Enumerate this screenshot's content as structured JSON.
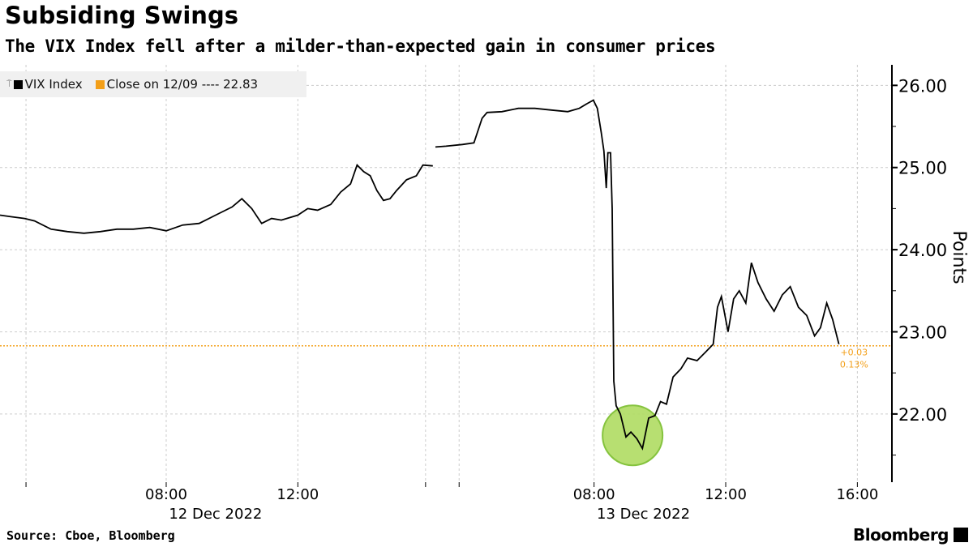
{
  "chart_data": {
    "type": "line",
    "title": "Subsiding Swings",
    "subtitle": "The VIX Index fell after a milder-than-expected gain in consumer prices",
    "ylabel": "Points",
    "ylim": [
      21.17,
      26.25
    ],
    "yticks": [
      22.0,
      23.0,
      24.0,
      25.0,
      26.0
    ],
    "ytick_labels": [
      "22.00",
      "23.00",
      "24.00",
      "25.00",
      "26.00"
    ],
    "xlim": [
      2.95,
      30.05
    ],
    "xticks": [
      8,
      12,
      21,
      25,
      29
    ],
    "xtick_labels": [
      "08:00",
      "12:00",
      "08:00",
      "12:00",
      "16:00"
    ],
    "x_minor_gridlines": [
      3.74,
      15.88,
      16.9
    ],
    "date_labels": [
      {
        "x": 9.5,
        "label": "12 Dec 2022"
      },
      {
        "x": 22.5,
        "label": "13 Dec 2022"
      }
    ],
    "grid": true,
    "legend_position": "top-left",
    "series": [
      {
        "name": "VIX Index",
        "color": "#000000",
        "segments": [
          [
            [
              2.95,
              24.42
            ],
            [
              3.3,
              24.4
            ],
            [
              3.7,
              24.38
            ],
            [
              4.0,
              24.35
            ],
            [
              4.5,
              24.25
            ],
            [
              5.0,
              24.22
            ],
            [
              5.5,
              24.2
            ],
            [
              6.0,
              24.22
            ],
            [
              6.5,
              24.25
            ],
            [
              7.0,
              24.25
            ],
            [
              7.5,
              24.27
            ],
            [
              8.0,
              24.23
            ],
            [
              8.5,
              24.3
            ],
            [
              9.0,
              24.32
            ],
            [
              9.5,
              24.42
            ],
            [
              10.0,
              24.52
            ],
            [
              10.3,
              24.62
            ],
            [
              10.6,
              24.5
            ],
            [
              10.9,
              24.32
            ],
            [
              11.2,
              24.38
            ],
            [
              11.5,
              24.36
            ],
            [
              12.0,
              24.42
            ],
            [
              12.3,
              24.5
            ],
            [
              12.6,
              24.48
            ],
            [
              13.0,
              24.55
            ],
            [
              13.3,
              24.7
            ],
            [
              13.6,
              24.8
            ],
            [
              13.8,
              25.03
            ],
            [
              14.0,
              24.95
            ],
            [
              14.2,
              24.9
            ],
            [
              14.4,
              24.72
            ],
            [
              14.6,
              24.6
            ],
            [
              14.8,
              24.62
            ],
            [
              15.0,
              24.72
            ],
            [
              15.3,
              24.85
            ],
            [
              15.6,
              24.9
            ],
            [
              15.8,
              25.03
            ],
            [
              16.1,
              25.02
            ]
          ],
          [
            [
              16.18,
              25.25
            ],
            [
              16.5,
              25.26
            ],
            [
              17.0,
              25.28
            ],
            [
              17.35,
              25.3
            ],
            [
              17.6,
              25.6
            ],
            [
              17.75,
              25.67
            ],
            [
              18.2,
              25.68
            ],
            [
              18.7,
              25.72
            ],
            [
              19.2,
              25.72
            ],
            [
              19.7,
              25.7
            ],
            [
              20.2,
              25.68
            ],
            [
              20.55,
              25.72
            ],
            [
              20.8,
              25.78
            ],
            [
              20.98,
              25.82
            ],
            [
              21.1,
              25.72
            ],
            [
              21.22,
              25.42
            ],
            [
              21.3,
              25.2
            ],
            [
              21.37,
              24.75
            ],
            [
              21.42,
              25.18
            ],
            [
              21.5,
              25.18
            ],
            [
              21.55,
              24.5
            ],
            [
              21.6,
              22.4
            ],
            [
              21.67,
              22.1
            ],
            [
              21.8,
              22.0
            ],
            [
              21.97,
              21.72
            ],
            [
              22.12,
              21.78
            ],
            [
              22.3,
              21.7
            ],
            [
              22.47,
              21.58
            ],
            [
              22.66,
              21.95
            ],
            [
              22.85,
              21.98
            ],
            [
              23.02,
              22.15
            ],
            [
              23.2,
              22.12
            ],
            [
              23.4,
              22.45
            ],
            [
              23.64,
              22.55
            ],
            [
              23.84,
              22.68
            ],
            [
              24.13,
              22.65
            ],
            [
              24.38,
              22.75
            ],
            [
              24.62,
              22.85
            ],
            [
              24.75,
              23.3
            ],
            [
              24.87,
              23.43
            ],
            [
              25.07,
              23.0
            ],
            [
              25.24,
              23.4
            ],
            [
              25.41,
              23.5
            ],
            [
              25.61,
              23.35
            ],
            [
              25.78,
              23.84
            ],
            [
              25.98,
              23.6
            ],
            [
              26.23,
              23.4
            ],
            [
              26.47,
              23.25
            ],
            [
              26.72,
              23.45
            ],
            [
              26.96,
              23.55
            ],
            [
              27.21,
              23.3
            ],
            [
              27.46,
              23.2
            ],
            [
              27.7,
              22.95
            ],
            [
              27.88,
              23.05
            ],
            [
              28.07,
              23.35
            ],
            [
              28.25,
              23.15
            ],
            [
              28.44,
              22.85
            ]
          ]
        ]
      },
      {
        "name": "Close on 12/09 ---- 22.83",
        "color": "#f39f18",
        "value": 22.83
      }
    ],
    "legend": [
      "VIX Index",
      "Close on 12/09 ---- 22.83"
    ],
    "annotations": [
      {
        "text_1": "+0.03",
        "text_2": "0.13%",
        "x": 28.9,
        "color": "#f39f18"
      },
      {
        "type": "highlight-circle",
        "x": 22.17,
        "y": 21.74,
        "color": "#b0dc62"
      }
    ]
  },
  "footer": {
    "source": "Source: Cboe, Bloomberg",
    "logo": "Bloomberg"
  }
}
